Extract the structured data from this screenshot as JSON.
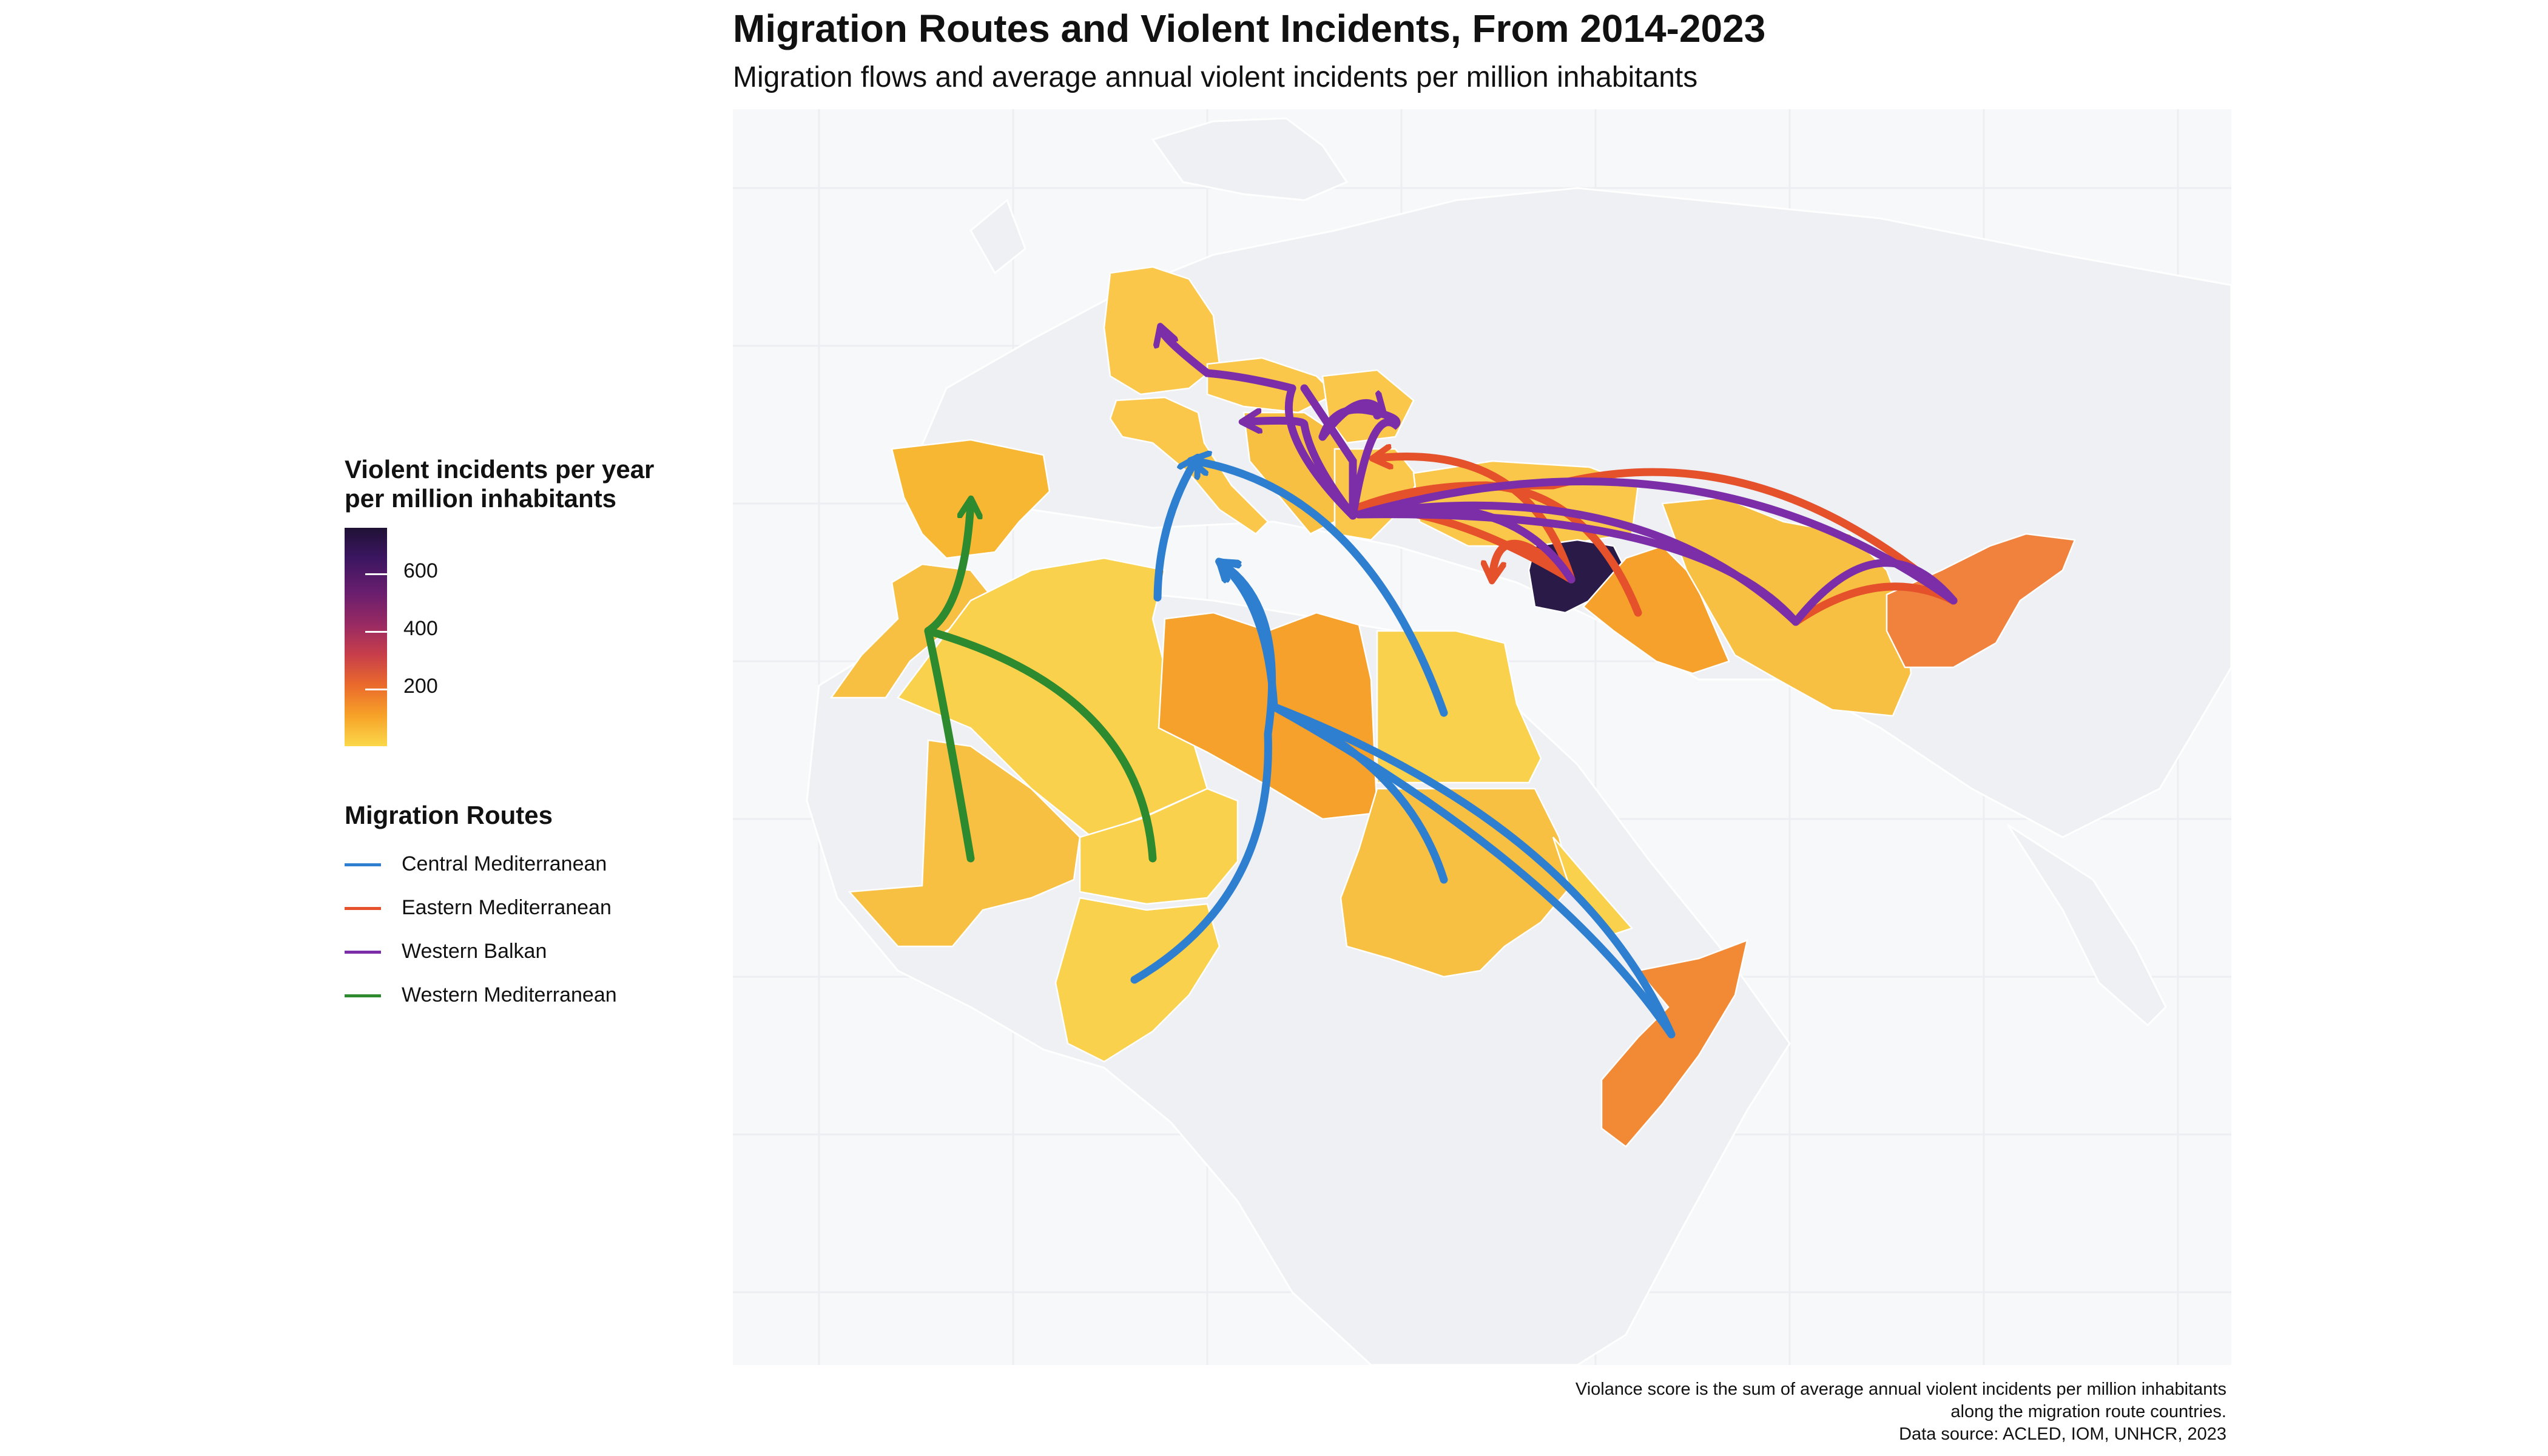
{
  "title": "Migration Routes and Violent Incidents, From 2014-2023",
  "subtitle": "Migration flows and average annual violent incidents per million inhabitants",
  "colorbar": {
    "title_line1": "Violent incidents per year",
    "title_line2": "per million inhabitants",
    "ticks": [
      "200",
      "400",
      "600"
    ],
    "low_color": "#fbd84a",
    "high_color": "#1f1135"
  },
  "routes_legend": {
    "title": "Migration Routes",
    "items": [
      {
        "label": "Central Mediterranean",
        "color": "#2f7fd1"
      },
      {
        "label": "Eastern Mediterranean",
        "color": "#e4512b"
      },
      {
        "label": "Western Balkan",
        "color": "#7b2ea8"
      },
      {
        "label": "Western Mediterranean",
        "color": "#2e8a2e"
      }
    ]
  },
  "caption": {
    "line1": "Violance score is the sum of average annual violent incidents per million inhabitants",
    "line2": "along the migration route countries.",
    "line3": "Data source: ACLED, IOM, UNHCR, 2023"
  }
}
